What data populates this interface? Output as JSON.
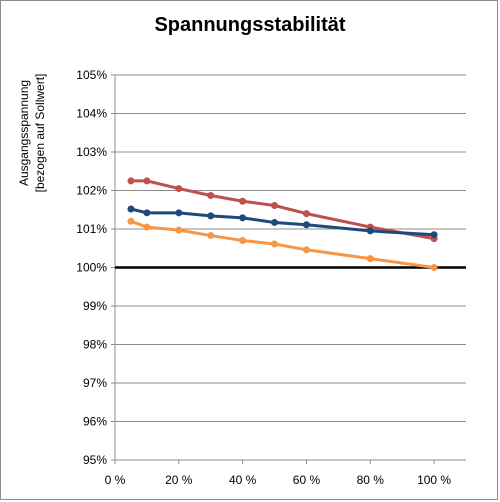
{
  "chart_data": {
    "type": "line",
    "title": "Spannungsstabilität",
    "ylabel_lines": [
      "Ausgangsspannung",
      "[bezogen auf Sollwert]"
    ],
    "xlabel": "",
    "xlim": [
      0,
      110
    ],
    "ylim": [
      95,
      105
    ],
    "x_ticks": [
      0,
      20,
      40,
      60,
      80,
      100
    ],
    "x_tick_labels": [
      "0 %",
      "20 %",
      "40 %",
      "60 %",
      "80 %",
      "100 %"
    ],
    "y_ticks": [
      95,
      96,
      97,
      98,
      99,
      100,
      101,
      102,
      103,
      104,
      105
    ],
    "y_tick_labels": [
      "95%",
      "96%",
      "97%",
      "98%",
      "99%",
      "100%",
      "101%",
      "102%",
      "103%",
      "104%",
      "105%"
    ],
    "grid": "horizontal",
    "legend": "none",
    "reference_line": {
      "y": 100,
      "color": "#000000"
    },
    "series": [
      {
        "color": "#c0504d",
        "x": [
          5,
          10,
          20,
          30,
          40,
          50,
          60,
          80,
          100
        ],
        "y": [
          102.25,
          102.25,
          102.05,
          101.87,
          101.72,
          101.61,
          101.4,
          101.05,
          100.75
        ]
      },
      {
        "color": "#1f497d",
        "x": [
          5,
          10,
          20,
          30,
          40,
          50,
          60,
          80,
          100
        ],
        "y": [
          101.52,
          101.42,
          101.42,
          101.34,
          101.29,
          101.17,
          101.11,
          100.95,
          100.85
        ]
      },
      {
        "color": "#f79646",
        "x": [
          5,
          10,
          20,
          30,
          40,
          50,
          60,
          80,
          100
        ],
        "y": [
          101.2,
          101.05,
          100.97,
          100.83,
          100.7,
          100.61,
          100.46,
          100.23,
          100.0
        ]
      }
    ]
  }
}
